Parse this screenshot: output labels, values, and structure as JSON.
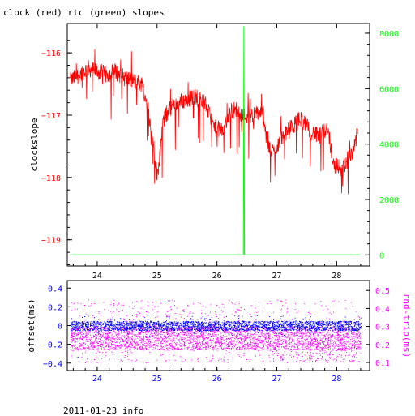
{
  "title": "clock (red) rtc (green) slopes",
  "footer": "2011-01-23 info",
  "colors": {
    "clock": "#ff0000",
    "rtc": "#00ff00",
    "offset": "#0000ff",
    "rndtrip": "#ff00ff",
    "axis": "#000000"
  },
  "chart_data": [
    {
      "type": "line",
      "title": "clock (red) rtc (green) slopes",
      "ylabel": "clockslope",
      "xlim": [
        23.5,
        28.55
      ],
      "ylim": [
        -119.42,
        -115.53
      ],
      "y2lim": [
        -400,
        8350
      ],
      "grid": false,
      "x_ticks": [
        24,
        25,
        26,
        27,
        28
      ],
      "y_ticks": [
        -116,
        -117,
        -118,
        -119
      ],
      "y2_ticks": [
        0,
        2000,
        4000,
        6000,
        8000
      ],
      "series": [
        {
          "axis": "left",
          "color": "#ff0000",
          "x": [
            23.55,
            23.7,
            23.85,
            24.0,
            24.15,
            24.3,
            24.45,
            24.6,
            24.75,
            24.85,
            24.9,
            24.95,
            25.0,
            25.05,
            25.1,
            25.2,
            25.35,
            25.5,
            25.65,
            25.8,
            25.95,
            26.1,
            26.2,
            26.3,
            26.45,
            26.6,
            26.75,
            26.85,
            26.95,
            27.05,
            27.15,
            27.25,
            27.4,
            27.55,
            27.7,
            27.85,
            27.95,
            28.1,
            28.25,
            28.35
          ],
          "values": [
            -116.45,
            -116.35,
            -116.25,
            -116.3,
            -116.35,
            -116.3,
            -116.4,
            -116.45,
            -116.5,
            -116.9,
            -117.3,
            -117.55,
            -118.0,
            -117.6,
            -117.1,
            -116.9,
            -116.8,
            -116.75,
            -116.7,
            -116.8,
            -117.2,
            -117.25,
            -117.0,
            -116.9,
            -117.0,
            -117.0,
            -116.95,
            -117.5,
            -117.6,
            -117.4,
            -117.3,
            -117.2,
            -117.05,
            -117.25,
            -117.35,
            -117.2,
            -117.8,
            -117.85,
            -117.6,
            -117.3
          ]
        },
        {
          "axis": "right",
          "color": "#00ff00",
          "x": [
            23.55,
            26.44,
            26.45,
            26.46,
            28.4
          ],
          "values": [
            0,
            0,
            8250,
            0,
            0
          ]
        }
      ]
    },
    {
      "type": "scatter",
      "ylabel": "offset(ms)",
      "y2label": "rnd-trip(ms)",
      "xlim": [
        23.5,
        28.55
      ],
      "ylim": [
        -0.48,
        0.48
      ],
      "y2lim": [
        0.055,
        0.555
      ],
      "grid": false,
      "x_ticks": [
        24,
        25,
        26,
        27,
        28
      ],
      "y_ticks": [
        0.4,
        0.2,
        0,
        -0.2,
        -0.4
      ],
      "y2_ticks": [
        0.1,
        0.2,
        0.3,
        0.4,
        0.5
      ],
      "series": [
        {
          "axis": "left",
          "color": "#0000ff",
          "x_range": [
            23.55,
            28.4
          ],
          "band": [
            -0.05,
            0.05
          ],
          "sparse_extent": [
            -0.42,
            0.35
          ]
        },
        {
          "axis": "right",
          "color": "#ff00ff",
          "x_range": [
            23.55,
            28.4
          ],
          "band": [
            0.17,
            0.3
          ],
          "sparse_extent": [
            0.1,
            0.45
          ]
        }
      ]
    }
  ]
}
